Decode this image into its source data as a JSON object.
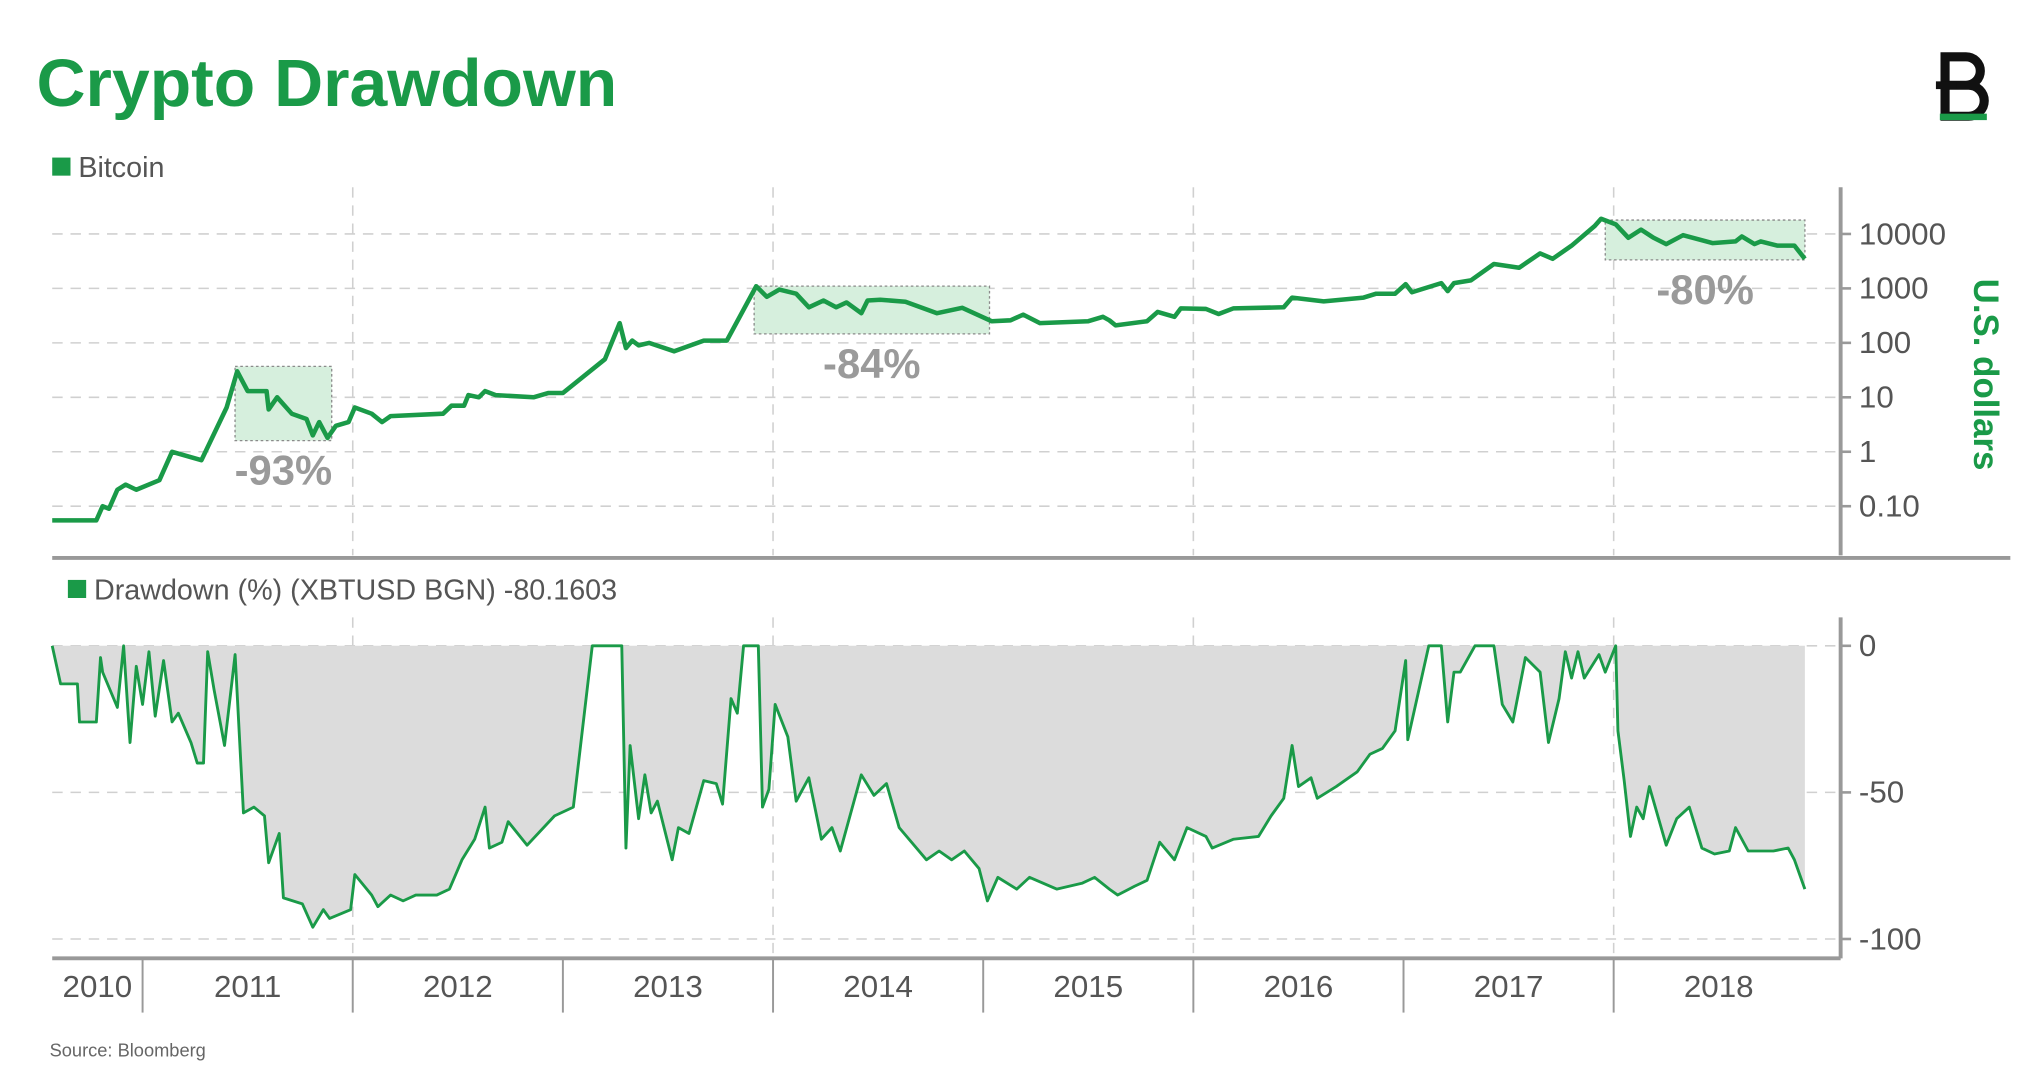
{
  "chart_data": [
    {
      "type": "line",
      "title": "Crypto Drawdown",
      "source": "Source: Bloomberg",
      "y_label": "U.S. dollars",
      "log_y": true,
      "xlim": [
        2010.57,
        2019.08
      ],
      "ylim": [
        0.0125,
        72000
      ],
      "yticks": [
        {
          "value": 0.1,
          "label": "0.10"
        },
        1,
        10,
        100,
        1000,
        10000
      ],
      "grid": true,
      "x": [
        2010.57,
        2010.78,
        2010.81,
        2010.84,
        2010.88,
        2010.92,
        2010.97,
        2011.08,
        2011.14,
        2011.28,
        2011.4,
        2011.45,
        2011.5,
        2011.59,
        2011.6,
        2011.64,
        2011.71,
        2011.78,
        2011.81,
        2011.84,
        2011.88,
        2011.92,
        2011.98,
        2012.01,
        2012.09,
        2012.14,
        2012.18,
        2012.43,
        2012.47,
        2012.53,
        2012.55,
        2012.6,
        2012.63,
        2012.68,
        2012.86,
        2012.93,
        2013.0,
        2013.2,
        2013.27,
        2013.3,
        2013.33,
        2013.36,
        2013.41,
        2013.53,
        2013.67,
        2013.78,
        2013.92,
        2013.97,
        2014.03,
        2014.11,
        2014.17,
        2014.24,
        2014.3,
        2014.35,
        2014.42,
        2014.45,
        2014.51,
        2014.63,
        2014.78,
        2014.9,
        2015.04,
        2015.13,
        2015.19,
        2015.27,
        2015.5,
        2015.57,
        2015.6,
        2015.63,
        2015.78,
        2015.83,
        2015.91,
        2015.94,
        2016.06,
        2016.12,
        2016.19,
        2016.43,
        2016.47,
        2016.62,
        2016.81,
        2016.87,
        2016.96,
        2017.01,
        2017.04,
        2017.18,
        2017.21,
        2017.24,
        2017.32,
        2017.43,
        2017.55,
        2017.65,
        2017.71,
        2017.8,
        2017.91,
        2017.94,
        2018.01,
        2018.07,
        2018.13,
        2018.19,
        2018.25,
        2018.33,
        2018.47,
        2018.58,
        2018.61,
        2018.67,
        2018.7,
        2018.78,
        2018.86,
        2018.91
      ],
      "series": [
        {
          "name": "Bitcoin",
          "color": "#1a9a48",
          "values": [
            0.055,
            0.055,
            0.1,
            0.09,
            0.2,
            0.25,
            0.2,
            0.3,
            1.0,
            0.7,
            6.5,
            30,
            13,
            13,
            6,
            10,
            5,
            4,
            2,
            3.5,
            1.8,
            3,
            3.5,
            6.5,
            5,
            3.5,
            4.5,
            5,
            7,
            7,
            11,
            10,
            13,
            11,
            10,
            12,
            12,
            50,
            230,
            80,
            110,
            90,
            100,
            70,
            110,
            110,
            1100,
            700,
            950,
            800,
            450,
            600,
            450,
            550,
            350,
            600,
            620,
            570,
            350,
            440,
            250,
            260,
            330,
            230,
            250,
            300,
            260,
            210,
            250,
            370,
            300,
            430,
            420,
            340,
            430,
            450,
            680,
            580,
            680,
            800,
            800,
            1200,
            850,
            1250,
            890,
            1250,
            1400,
            2800,
            2400,
            4400,
            3500,
            6100,
            14000,
            19000,
            15000,
            8500,
            12000,
            8500,
            6500,
            9500,
            6800,
            7300,
            9000,
            6500,
            7300,
            6100,
            6100,
            3500
          ]
        }
      ],
      "annotations": [
        {
          "text": "-93%",
          "x": [
            2011.44,
            2011.9
          ],
          "y": [
            1.6,
            37
          ]
        },
        {
          "text": "-84%",
          "x": [
            2013.91,
            2015.03
          ],
          "y": [
            146,
            1100
          ]
        },
        {
          "text": "-80%",
          "x": [
            2017.96,
            2018.91
          ],
          "y": [
            3340,
            18000
          ]
        }
      ]
    },
    {
      "type": "area",
      "xlim": [
        2010.57,
        2019.08
      ],
      "ylim": [
        -106.6,
        9.7
      ],
      "yticks": [
        0,
        -50,
        -100
      ],
      "xticks": [
        2010,
        2011,
        2012,
        2013,
        2014,
        2015,
        2016,
        2017,
        2018
      ],
      "grid": true,
      "x": [
        2010.57,
        2010.61,
        2010.69,
        2010.7,
        2010.78,
        2010.8,
        2010.81,
        2010.88,
        2010.91,
        2010.94,
        2010.97,
        2011.0,
        2011.03,
        2011.06,
        2011.1,
        2011.14,
        2011.17,
        2011.23,
        2011.26,
        2011.29,
        2011.31,
        2011.34,
        2011.39,
        2011.44,
        2011.48,
        2011.53,
        2011.58,
        2011.6,
        2011.65,
        2011.67,
        2011.76,
        2011.81,
        2011.86,
        2011.89,
        2011.99,
        2012.01,
        2012.09,
        2012.12,
        2012.18,
        2012.24,
        2012.3,
        2012.4,
        2012.46,
        2012.52,
        2012.58,
        2012.63,
        2012.65,
        2012.71,
        2012.74,
        2012.83,
        2012.96,
        2013.05,
        2013.14,
        2013.28,
        2013.3,
        2013.32,
        2013.36,
        2013.39,
        2013.42,
        2013.45,
        2013.52,
        2013.55,
        2013.6,
        2013.67,
        2013.73,
        2013.76,
        2013.8,
        2013.83,
        2013.86,
        2013.93,
        2013.95,
        2013.98,
        2014.01,
        2014.07,
        2014.11,
        2014.17,
        2014.23,
        2014.28,
        2014.32,
        2014.42,
        2014.48,
        2014.54,
        2014.6,
        2014.73,
        2014.79,
        2014.85,
        2014.91,
        2014.98,
        2015.02,
        2015.07,
        2015.16,
        2015.22,
        2015.35,
        2015.47,
        2015.53,
        2015.6,
        2015.64,
        2015.72,
        2015.78,
        2015.84,
        2015.91,
        2015.97,
        2016.06,
        2016.09,
        2016.19,
        2016.31,
        2016.37,
        2016.43,
        2016.47,
        2016.5,
        2016.56,
        2016.59,
        2016.68,
        2016.78,
        2016.84,
        2016.9,
        2016.96,
        2017.01,
        2017.02,
        2017.12,
        2017.18,
        2017.21,
        2017.24,
        2017.27,
        2017.34,
        2017.43,
        2017.47,
        2017.52,
        2017.58,
        2017.65,
        2017.69,
        2017.74,
        2017.77,
        2017.8,
        2017.83,
        2017.86,
        2017.93,
        2017.96,
        2018.01,
        2018.02,
        2018.05,
        2018.08,
        2018.11,
        2018.14,
        2018.17,
        2018.25,
        2018.3,
        2018.36,
        2018.42,
        2018.48,
        2018.55,
        2018.58,
        2018.64,
        2018.76,
        2018.83,
        2018.86,
        2018.91
      ],
      "series": [
        {
          "name": "Drawdown (%) (XBTUSD BGN) -80.1603",
          "color": "#1a9a48",
          "fill": "#dcdcdc",
          "values": [
            0,
            -13,
            -13,
            -26,
            -26,
            -4,
            -9,
            -21,
            0,
            -33,
            -7,
            -20,
            -2,
            -24,
            -5,
            -26,
            -23,
            -33,
            -40,
            -40,
            -2,
            -15,
            -34,
            -3,
            -57,
            -55,
            -58,
            -74,
            -64,
            -86,
            -88,
            -96,
            -90,
            -93,
            -90,
            -78,
            -85,
            -89,
            -85,
            -87,
            -85,
            -85,
            -83,
            -73,
            -66,
            -55,
            -69,
            -67,
            -60,
            -68,
            -58,
            -55,
            0,
            0,
            -69,
            -34,
            -59,
            -44,
            -57,
            -53,
            -73,
            -62,
            -64,
            -46,
            -47,
            -54,
            -18,
            -23,
            0,
            0,
            -55,
            -49,
            -20,
            -31,
            -53,
            -45,
            -66,
            -62,
            -70,
            -44,
            -51,
            -47,
            -62,
            -73,
            -70,
            -73,
            -70,
            -76,
            -87,
            -79,
            -83,
            -79,
            -83,
            -81,
            -79,
            -83,
            -85,
            -82,
            -80,
            -67,
            -73,
            -62,
            -65,
            -69,
            -66,
            -65,
            -58,
            -52,
            -34,
            -48,
            -45,
            -52,
            -48,
            -43,
            -37,
            -35,
            -29,
            -5,
            -32,
            0,
            0,
            -26,
            -9,
            -9,
            0,
            0,
            -20,
            -26,
            -4,
            -9,
            -33,
            -18,
            -2,
            -11,
            -2,
            -11,
            -3,
            -9,
            0,
            -29,
            -46,
            -65,
            -55,
            -59,
            -48,
            -68,
            -59,
            -55,
            -69,
            -71,
            -70,
            -62,
            -70,
            -70,
            -69,
            -73,
            -83
          ]
        }
      ]
    }
  ]
}
